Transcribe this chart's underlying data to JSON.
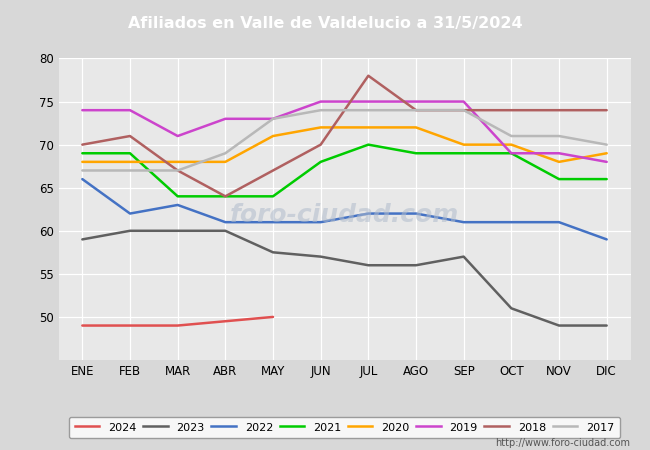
{
  "title": "Afiliados en Valle de Valdelucio a 31/5/2024",
  "title_bg": "#4a7abf",
  "title_color": "white",
  "months": [
    "ENE",
    "FEB",
    "MAR",
    "ABR",
    "MAY",
    "JUN",
    "JUL",
    "AGO",
    "SEP",
    "OCT",
    "NOV",
    "DIC"
  ],
  "ylim": [
    45,
    80
  ],
  "yticks": [
    50,
    55,
    60,
    65,
    70,
    75,
    80
  ],
  "series": {
    "2024": {
      "color": "#e05050",
      "data": [
        49,
        49,
        49,
        49.5,
        50,
        null,
        null,
        null,
        null,
        null,
        null,
        null
      ]
    },
    "2023": {
      "color": "#606060",
      "data": [
        59,
        60,
        60,
        60,
        57.5,
        57,
        56,
        56,
        57,
        51,
        49,
        49
      ]
    },
    "2022": {
      "color": "#4472c4",
      "data": [
        66,
        62,
        63,
        61,
        61,
        61,
        62,
        62,
        61,
        61,
        61,
        59
      ]
    },
    "2021": {
      "color": "#00cc00",
      "data": [
        69,
        69,
        64,
        64,
        64,
        68,
        70,
        69,
        69,
        69,
        66,
        66
      ]
    },
    "2020": {
      "color": "#ffa500",
      "data": [
        68,
        68,
        68,
        68,
        71,
        72,
        72,
        72,
        70,
        70,
        68,
        69
      ]
    },
    "2019": {
      "color": "#cc44cc",
      "data": [
        74,
        74,
        71,
        73,
        73,
        75,
        75,
        75,
        75,
        69,
        69,
        68
      ]
    },
    "2018": {
      "color": "#b06060",
      "data": [
        70,
        71,
        67,
        64,
        67,
        70,
        78,
        74,
        74,
        74,
        74,
        74
      ]
    },
    "2017": {
      "color": "#b8b8b8",
      "data": [
        67,
        67,
        67,
        69,
        73,
        74,
        74,
        74,
        74,
        71,
        71,
        70
      ]
    }
  },
  "legend_order": [
    "2024",
    "2023",
    "2022",
    "2021",
    "2020",
    "2019",
    "2018",
    "2017"
  ],
  "url": "http://www.foro-ciudad.com",
  "bg_color": "#d8d8d8",
  "plot_bg": "#e8e8e8"
}
